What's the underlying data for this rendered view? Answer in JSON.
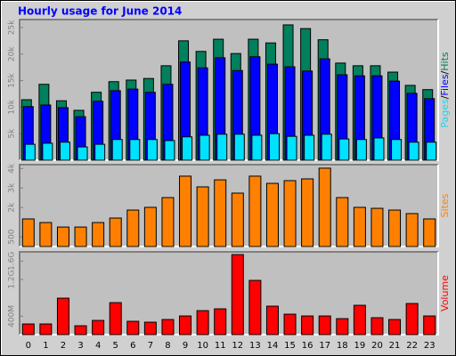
{
  "chart_data": [
    {
      "type": "bar",
      "title": "Hourly usage for June 2014",
      "legend_separator": "/",
      "series": [
        {
          "name": "Hits",
          "color": "#00805c",
          "values": [
            11400,
            14300,
            11200,
            9400,
            12800,
            14800,
            15100,
            15400,
            17800,
            22500,
            20500,
            22800,
            20100,
            22800,
            22100,
            25500,
            24800,
            22700,
            18300,
            17800,
            17800,
            16600,
            14100,
            13300
          ]
        },
        {
          "name": "Files",
          "color": "#0000ff",
          "values": [
            10100,
            10400,
            9900,
            8200,
            11100,
            13100,
            13400,
            12800,
            14300,
            18500,
            17400,
            19300,
            16900,
            19500,
            18100,
            17600,
            16800,
            19100,
            16100,
            15900,
            15900,
            14900,
            12600,
            11600
          ]
        },
        {
          "name": "Pages",
          "color": "#00e0ff",
          "values": [
            3000,
            3200,
            3400,
            2500,
            3000,
            3900,
            3900,
            3900,
            3700,
            4400,
            4700,
            4900,
            4900,
            4700,
            5000,
            4500,
            4700,
            4900,
            4000,
            3900,
            4200,
            3900,
            3400,
            3400
          ]
        }
      ],
      "ylim": [
        0,
        26500
      ],
      "yticks": [
        {
          "value": 5000,
          "label": "5k"
        },
        {
          "value": 10000,
          "label": "10k"
        },
        {
          "value": 15000,
          "label": "15k"
        },
        {
          "value": 20000,
          "label": "20k"
        },
        {
          "value": 25000,
          "label": "25k"
        }
      ]
    },
    {
      "type": "bar",
      "series": [
        {
          "name": "Sites",
          "color": "#ff8000",
          "values": [
            1415,
            1230,
            1000,
            1000,
            1230,
            1460,
            1870,
            2010,
            2510,
            3610,
            3060,
            3420,
            2740,
            3610,
            3240,
            3380,
            3470,
            4020,
            2510,
            2010,
            1960,
            1870,
            1690,
            1415
          ]
        }
      ],
      "ylim": [
        0,
        4200
      ],
      "yticks": [
        500,
        {
          "value": 2000,
          "label": "2k"
        },
        {
          "value": 3000,
          "label": "3k"
        },
        {
          "value": 4000,
          "label": "4k"
        }
      ]
    },
    {
      "type": "bar",
      "categories": [
        "0",
        "1",
        "2",
        "3",
        "4",
        "5",
        "6",
        "7",
        "8",
        "9",
        "10",
        "11",
        "12",
        "13",
        "14",
        "15",
        "16",
        "17",
        "18",
        "19",
        "20",
        "21",
        "22",
        "23"
      ],
      "series": [
        {
          "name": "Volume",
          "color": "#ff0000",
          "values": [
            232,
            232,
            793,
            193,
            309,
            696,
            290,
            271,
            329,
            406,
            522,
            561,
            1741,
            1180,
            619,
            445,
            406,
            406,
            348,
            638,
            368,
            329,
            677,
            406
          ]
        }
      ],
      "ylim": [
        0,
        1800
      ],
      "yticks": [
        {
          "value": 400,
          "label": "400M"
        },
        {
          "value": 1200,
          "label": "1.2G"
        },
        {
          "value": 1600,
          "label": "1.6G"
        }
      ]
    }
  ]
}
